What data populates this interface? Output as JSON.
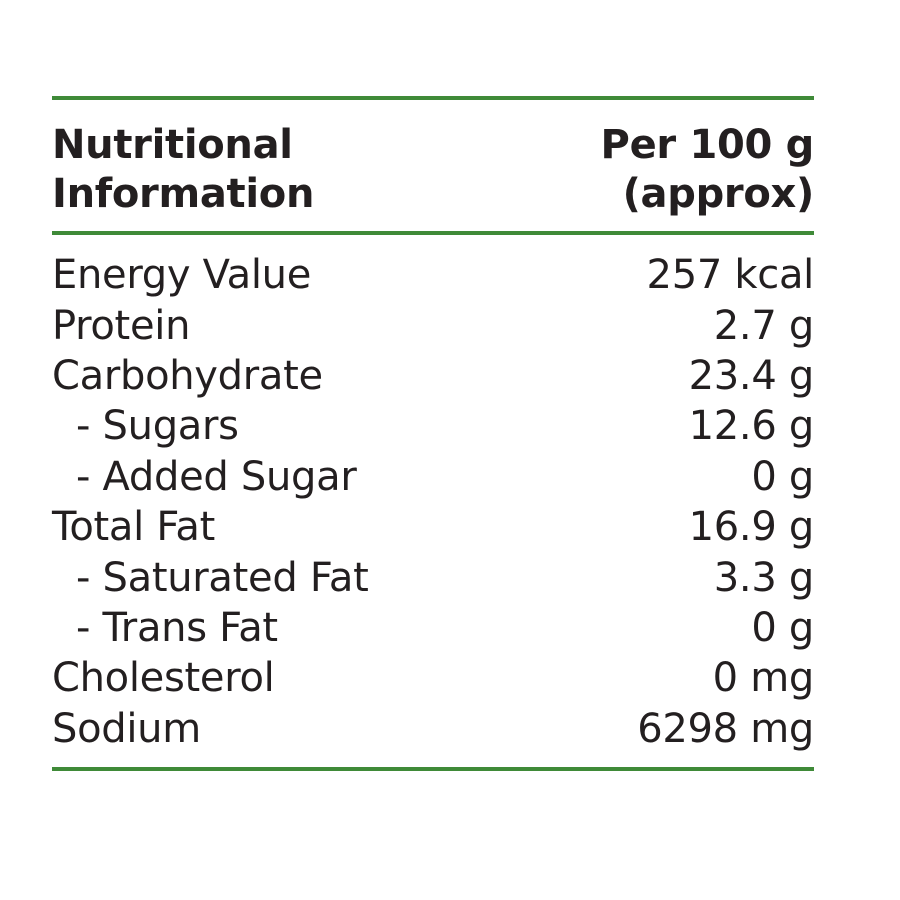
{
  "header": {
    "left_line1": "Nutritional",
    "left_line2": "Information",
    "right_line1": "Per 100 g",
    "right_line2": "(approx)"
  },
  "rows": [
    {
      "label": "Energy Value",
      "value": "257 kcal"
    },
    {
      "label": "Protein",
      "value": "2.7 g"
    },
    {
      "label": "Carbohydrate",
      "value": "23.4 g"
    },
    {
      "label": "- Sugars",
      "value": "12.6 g"
    },
    {
      "label": "- Added Sugar",
      "value": "0 g"
    },
    {
      "label": "Total Fat",
      "value": "16.9 g"
    },
    {
      "label": "- Saturated Fat",
      "value": "3.3 g"
    },
    {
      "label": "- Trans Fat",
      "value": "0 g"
    },
    {
      "label": "Cholesterol",
      "value": "0 mg"
    },
    {
      "label": "Sodium",
      "value": "6298 mg"
    }
  ],
  "colors": {
    "rule": "#3f8a38",
    "text": "#231f20"
  }
}
